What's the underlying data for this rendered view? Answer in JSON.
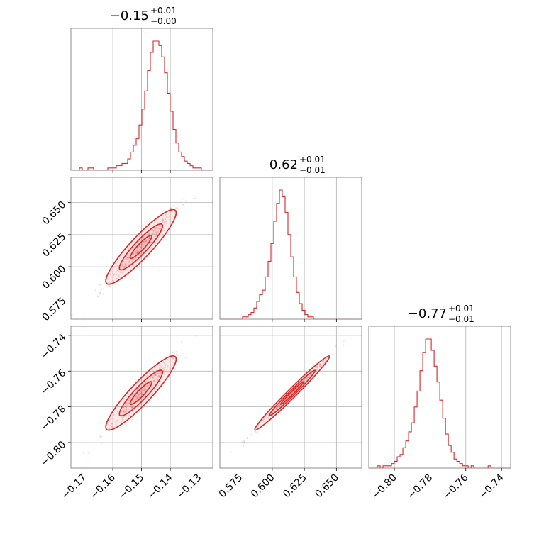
{
  "colors": {
    "line": "#d62728",
    "grid": "#b0b0b0",
    "frame": "#808080"
  },
  "params": [
    {
      "median": "−0.15",
      "plus": "+0.01",
      "minus": "−0.00",
      "range": [
        -0.1746,
        -0.1252
      ],
      "ticks": [
        {
          "v": -0.17,
          "label": "−0.17"
        },
        {
          "v": -0.16,
          "label": "−0.16"
        },
        {
          "v": -0.15,
          "label": "−0.15"
        },
        {
          "v": -0.14,
          "label": "−0.14"
        },
        {
          "v": -0.13,
          "label": "−0.13"
        }
      ]
    },
    {
      "median": "0.62",
      "plus": "+0.01",
      "minus": "−0.01",
      "range": [
        0.5592,
        0.6697
      ],
      "ticks": [
        {
          "v": 0.575,
          "label": "0.575"
        },
        {
          "v": 0.6,
          "label": "0.600"
        },
        {
          "v": 0.625,
          "label": "0.625"
        },
        {
          "v": 0.65,
          "label": "0.650"
        }
      ]
    },
    {
      "median": "−0.77",
      "plus": "+0.01",
      "minus": "−0.01",
      "range": [
        -0.8143,
        -0.7349
      ],
      "ticks": [
        {
          "v": -0.8,
          "label": "−0.80"
        },
        {
          "v": -0.78,
          "label": "−0.78"
        },
        {
          "v": -0.76,
          "label": "−0.76"
        },
        {
          "v": -0.74,
          "label": "−0.74"
        }
      ]
    }
  ],
  "chart_data": {
    "type": "corner",
    "description": "Corner plot of three parameters: 1D marginal histograms on the diagonal, 2D contours with scatter below",
    "histograms": [
      {
        "param": 0,
        "bin_start": -0.1746,
        "bin_width": 0.000988,
        "counts": [
          0,
          0,
          0,
          1,
          0,
          0,
          1,
          1,
          0,
          0,
          0,
          0,
          0,
          1,
          1,
          1,
          2,
          2,
          3,
          3,
          5,
          8,
          11,
          14,
          20,
          27,
          35,
          44,
          52,
          57,
          57,
          55,
          50,
          43,
          34,
          26,
          18,
          12,
          8,
          6,
          4,
          3,
          2,
          1,
          1,
          1,
          0,
          0,
          0,
          0
        ]
      },
      {
        "param": 1,
        "bin_start": 0.5592,
        "bin_width": 0.00221,
        "counts": [
          0,
          0,
          0,
          0,
          0,
          0,
          0,
          0,
          1,
          1,
          2,
          3,
          5,
          8,
          11,
          13,
          19,
          26,
          34,
          44,
          52,
          58,
          55,
          48,
          38,
          28,
          19,
          12,
          7,
          4,
          2,
          1,
          1,
          0,
          0,
          0,
          0,
          0,
          0,
          0,
          0,
          0,
          0,
          0,
          0,
          0,
          0,
          0,
          0,
          0
        ]
      },
      {
        "param": 2,
        "bin_start": -0.8143,
        "bin_width": 0.00159,
        "counts": [
          0,
          0,
          0,
          1,
          0,
          1,
          1,
          1,
          2,
          3,
          5,
          6,
          9,
          12,
          16,
          20,
          27,
          34,
          43,
          51,
          57,
          57,
          52,
          45,
          38,
          30,
          22,
          15,
          10,
          7,
          4,
          3,
          2,
          1,
          1,
          0,
          1,
          0,
          0,
          0,
          0,
          0,
          1,
          0,
          0,
          0,
          0,
          0,
          0,
          0
        ]
      }
    ],
    "pairs": [
      {
        "x_param": 0,
        "y_param": 1,
        "correlation": 0.98
      },
      {
        "x_param": 0,
        "y_param": 2,
        "correlation": 0.98
      },
      {
        "x_param": 1,
        "y_param": 2,
        "correlation": 0.997
      }
    ],
    "contour_levels": [
      "39%",
      "86%",
      "99%"
    ]
  }
}
